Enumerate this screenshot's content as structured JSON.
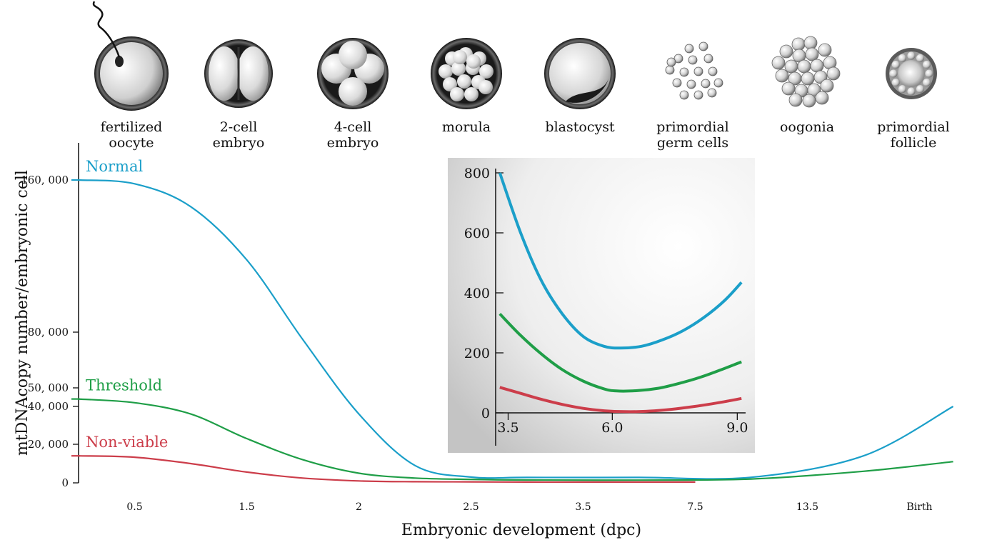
{
  "stages": [
    {
      "id": "fertilized-oocyte",
      "label_lines": [
        "fertilized",
        "oocyte"
      ]
    },
    {
      "id": "2-cell-embryo",
      "label_lines": [
        "2-cell",
        "embryo"
      ]
    },
    {
      "id": "4-cell-embryo",
      "label_lines": [
        "4-cell",
        "embryo"
      ]
    },
    {
      "id": "morula",
      "label_lines": [
        "morula"
      ]
    },
    {
      "id": "blastocyst",
      "label_lines": [
        "blastocyst"
      ]
    },
    {
      "id": "primordial-germ-cells",
      "label_lines": [
        "primordial",
        "germ cells"
      ]
    },
    {
      "id": "oogonia",
      "label_lines": [
        "oogonia"
      ]
    },
    {
      "id": "primordial-follicle",
      "label_lines": [
        "primordial",
        "follicle"
      ]
    }
  ],
  "chart_data": [
    {
      "type": "line",
      "title": "",
      "xlabel": "Embryonic development (dpc)",
      "ylabel": "mtDNAcopy number/embryonic cell",
      "categories": [
        "0.5",
        "1.5",
        "2",
        "2.5",
        "3.5",
        "7.5",
        "13.5",
        "Birth"
      ],
      "y_ticks": [
        0,
        20000,
        40000,
        50000,
        80000,
        160000
      ],
      "y_tick_labels": [
        "0",
        "20, 000",
        "40, 000",
        "50, 000",
        "80, 000",
        "160, 000"
      ],
      "y_scale": "piecewise",
      "grid": false,
      "series": [
        {
          "name": "Normal",
          "color": "#1b9fc9",
          "x": [
            0,
            0.5,
            1,
            1.5,
            2,
            2.5,
            3,
            3.5,
            4,
            5,
            6,
            7,
            7.8
          ],
          "y": [
            160000,
            158000,
            146000,
            118000,
            76000,
            36000,
            9000,
            3000,
            2800,
            2800,
            2900,
            14000,
            40000
          ]
        },
        {
          "name": "Threshold",
          "color": "#1f9e47",
          "x": [
            0,
            0.5,
            1,
            1.5,
            2,
            2.5,
            3,
            3.5,
            4,
            5,
            6,
            7,
            7.8
          ],
          "y": [
            44000,
            42000,
            36000,
            23000,
            12000,
            5000,
            2500,
            1800,
            1500,
            1400,
            2000,
            6000,
            11000
          ]
        },
        {
          "name": "Non-viable",
          "color": "#cc3d4a",
          "x": [
            0,
            0.5,
            1,
            1.5,
            2,
            2.5,
            3,
            3.5,
            4,
            4.5,
            5,
            5.5
          ],
          "y": [
            14000,
            13300,
            10000,
            5600,
            2500,
            1000,
            600,
            500,
            400,
            400,
            400,
            400
          ]
        }
      ]
    },
    {
      "type": "line",
      "title": "",
      "xlabel": "",
      "ylabel": "",
      "x_ticks": [
        3.5,
        6.0,
        9.0
      ],
      "x_tick_labels": [
        "3.5",
        "6.0",
        "9.0"
      ],
      "y_ticks": [
        0,
        200,
        400,
        600,
        800
      ],
      "y_tick_labels": [
        "0",
        "200",
        "400",
        "600",
        "800"
      ],
      "xlim": [
        3.2,
        9.2
      ],
      "ylim": [
        -130,
        820
      ],
      "grid": false,
      "series": [
        {
          "name": "Normal",
          "color": "#1b9fc9",
          "x": [
            3.3,
            3.8,
            4.3,
            4.8,
            5.3,
            5.8,
            6.2,
            6.7,
            7.2,
            7.7,
            8.2,
            8.7,
            9.1
          ],
          "y": [
            800,
            600,
            440,
            330,
            255,
            222,
            216,
            222,
            243,
            274,
            318,
            375,
            435
          ]
        },
        {
          "name": "Threshold",
          "color": "#1f9e47",
          "x": [
            3.3,
            3.8,
            4.3,
            4.8,
            5.3,
            5.8,
            6.1,
            6.6,
            7.1,
            7.6,
            8.1,
            8.6,
            9.1
          ],
          "y": [
            330,
            258,
            196,
            144,
            106,
            80,
            73,
            74,
            82,
            98,
            118,
            143,
            170
          ]
        },
        {
          "name": "Non-viable",
          "color": "#cc3d4a",
          "x": [
            3.3,
            3.8,
            4.3,
            4.8,
            5.3,
            5.8,
            6.3,
            6.8,
            7.3,
            7.8,
            8.3,
            8.8,
            9.1
          ],
          "y": [
            85,
            65,
            45,
            28,
            15,
            7,
            4,
            5,
            10,
            18,
            28,
            40,
            48
          ]
        }
      ]
    }
  ]
}
